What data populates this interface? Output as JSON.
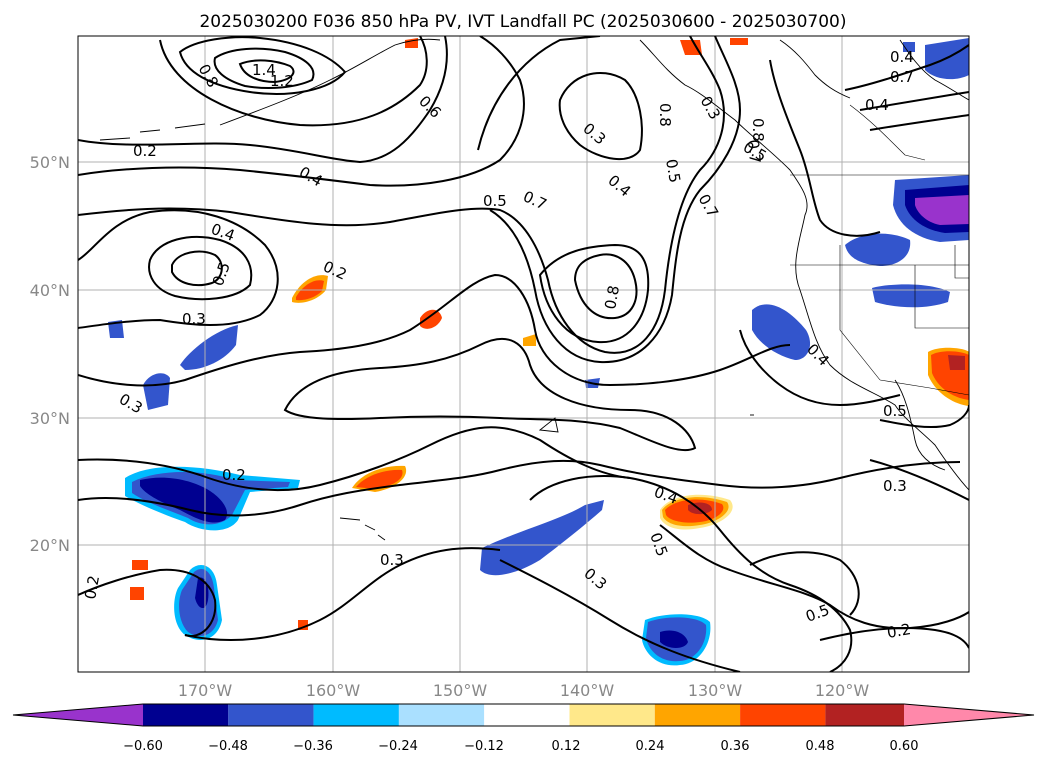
{
  "title": "2025030200 F036 850 hPa PV, IVT Landfall PC (2025030600 - 2025030700)",
  "lat_labels": [
    "50°N",
    "40°N",
    "30°N",
    "20°N"
  ],
  "lon_labels": [
    "170°W",
    "160°W",
    "150°W",
    "140°W",
    "130°W",
    "120°W"
  ],
  "colorbar": {
    "ticks": [
      "−0.60",
      "−0.48",
      "−0.36",
      "−0.24",
      "−0.12",
      "0.12",
      "0.24",
      "0.36",
      "0.48",
      "0.60"
    ],
    "colors": [
      "#9933cc",
      "#000090",
      "#3355cc",
      "#00bbff",
      "#aae0ff",
      "#ffffff",
      "#ffe88a",
      "#ffa500",
      "#ff4400",
      "#b22222",
      "#ff88aa"
    ],
    "extend": "both"
  },
  "contour_labels": [
    "1.4",
    "1.2",
    "0.8",
    "0.6",
    "0.2",
    "0.4",
    "0.5",
    "0.7",
    "0.3",
    "0.8",
    "0.4",
    "0.5",
    "0.7",
    "0.3",
    "0.4",
    "0.5",
    "0.8",
    "0.7",
    "0.2",
    "0.4",
    "0.5",
    "0.3",
    "0.2",
    "0.3",
    "0.4",
    "0.5",
    "0.3",
    "0.3",
    "0.5",
    "0.2",
    "0.2",
    "0.3",
    "0.4",
    "0.5",
    "0.8",
    "0.7",
    "0.4"
  ]
}
